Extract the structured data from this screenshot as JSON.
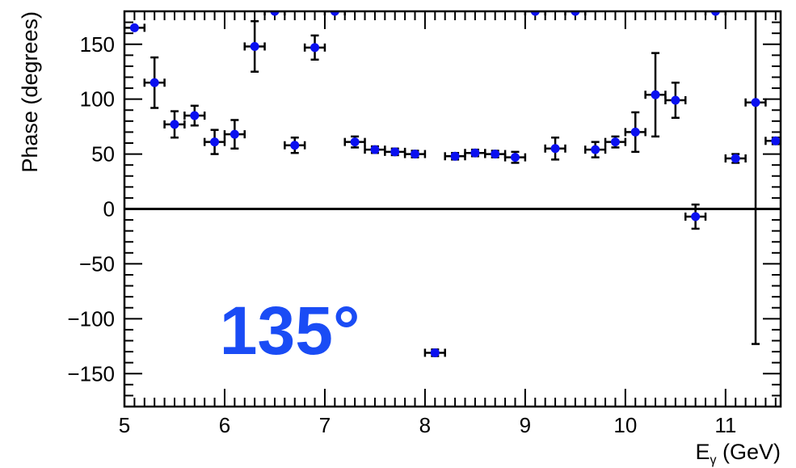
{
  "chart_data": {
    "type": "scatter",
    "xlabel_main": "E",
    "xlabel_sub": "γ",
    "xlabel_unit": " (GeV)",
    "ylabel": "Phase (degrees)",
    "xlim": [
      5,
      11.55
    ],
    "ylim": [
      -180,
      180
    ],
    "xticks": [
      5,
      6,
      7,
      8,
      9,
      10,
      11
    ],
    "yticks": [
      -150,
      -100,
      -50,
      0,
      50,
      100,
      150
    ],
    "zero_line": true,
    "grid": false,
    "legend": "none",
    "marker_color": "#0a10f0",
    "annotation": {
      "text": "135°",
      "x": 5.95,
      "y": -110,
      "color": "#1a4cf5"
    },
    "points": [
      {
        "x": 5.1,
        "y": 165,
        "xerr": 0.1,
        "yerr": 0
      },
      {
        "x": 5.3,
        "y": 115,
        "xerr": 0.1,
        "yerr": 23
      },
      {
        "x": 5.5,
        "y": 77,
        "xerr": 0.1,
        "yerr": 12
      },
      {
        "x": 5.7,
        "y": 85,
        "xerr": 0.1,
        "yerr": 9
      },
      {
        "x": 5.9,
        "y": 61,
        "xerr": 0.1,
        "yerr": 11
      },
      {
        "x": 6.1,
        "y": 68,
        "xerr": 0.1,
        "yerr": 13
      },
      {
        "x": 6.3,
        "y": 148,
        "xerr": 0.1,
        "yerr": 23
      },
      {
        "x": 6.5,
        "y": 180,
        "xerr": 0.1,
        "yerr": 0
      },
      {
        "x": 6.7,
        "y": 58,
        "xerr": 0.1,
        "yerr": 7
      },
      {
        "x": 6.9,
        "y": 147,
        "xerr": 0.1,
        "yerr": 11
      },
      {
        "x": 7.1,
        "y": 180,
        "xerr": 0.1,
        "yerr": 0
      },
      {
        "x": 7.3,
        "y": 61,
        "xerr": 0.1,
        "yerr": 5
      },
      {
        "x": 7.5,
        "y": 54,
        "xerr": 0.1,
        "yerr": 3
      },
      {
        "x": 7.7,
        "y": 52,
        "xerr": 0.1,
        "yerr": 3
      },
      {
        "x": 7.9,
        "y": 50,
        "xerr": 0.1,
        "yerr": 3
      },
      {
        "x": 8.1,
        "y": -131,
        "xerr": 0.1,
        "yerr": 3
      },
      {
        "x": 8.3,
        "y": 48,
        "xerr": 0.1,
        "yerr": 3
      },
      {
        "x": 8.5,
        "y": 51,
        "xerr": 0.1,
        "yerr": 3
      },
      {
        "x": 8.7,
        "y": 50,
        "xerr": 0.1,
        "yerr": 3
      },
      {
        "x": 8.9,
        "y": 47,
        "xerr": 0.1,
        "yerr": 5
      },
      {
        "x": 9.1,
        "y": 180,
        "xerr": 0.1,
        "yerr": 0
      },
      {
        "x": 9.3,
        "y": 55,
        "xerr": 0.1,
        "yerr": 10
      },
      {
        "x": 9.5,
        "y": 180,
        "xerr": 0.1,
        "yerr": 0
      },
      {
        "x": 9.7,
        "y": 54,
        "xerr": 0.1,
        "yerr": 7
      },
      {
        "x": 9.9,
        "y": 61,
        "xerr": 0.1,
        "yerr": 5
      },
      {
        "x": 10.1,
        "y": 70,
        "xerr": 0.1,
        "yerr": 18
      },
      {
        "x": 10.3,
        "y": 104,
        "xerr": 0.1,
        "yerr": 38
      },
      {
        "x": 10.5,
        "y": 99,
        "xerr": 0.1,
        "yerr": 16
      },
      {
        "x": 10.7,
        "y": -7,
        "xerr": 0.1,
        "yerr": 11
      },
      {
        "x": 10.9,
        "y": 180,
        "xerr": 0.1,
        "yerr": 0
      },
      {
        "x": 11.1,
        "y": 46,
        "xerr": 0.1,
        "yerr": 4
      },
      {
        "x": 11.3,
        "y": 97,
        "xerr": 0.1,
        "yerr": 220
      },
      {
        "x": 11.5,
        "y": 62,
        "xerr": 0.1,
        "yerr": 3
      }
    ]
  }
}
